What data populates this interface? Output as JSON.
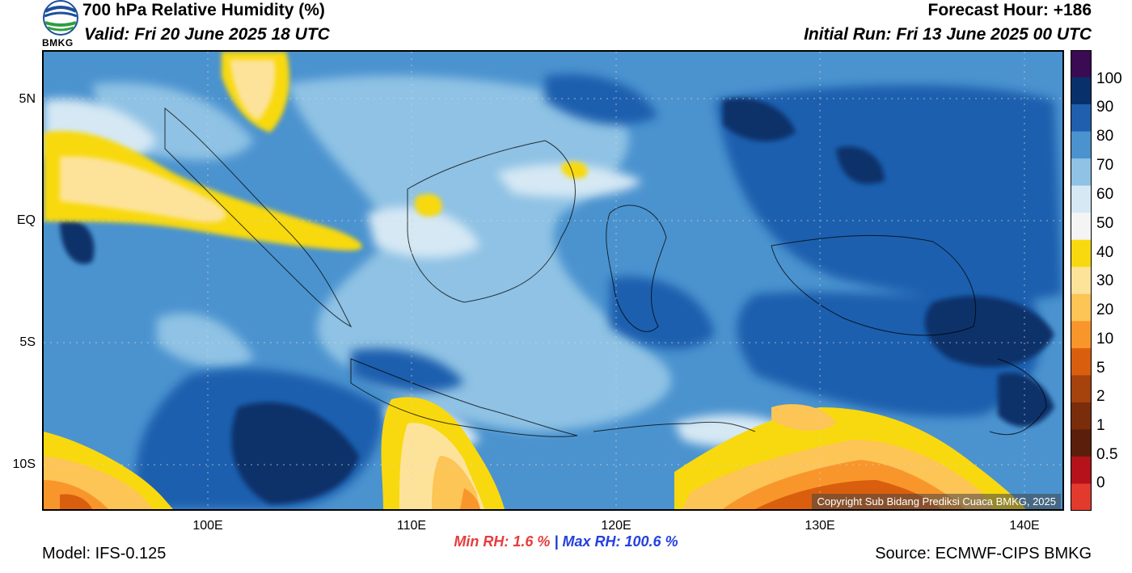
{
  "header": {
    "title": "700 hPa Relative Humidity (%)",
    "valid": "Valid: Fri 20 June 2025 18 UTC",
    "forecast_hour": "Forecast Hour: +186",
    "initial_run": "Initial Run: Fri 13 June 2025 00 UTC",
    "logo_text": "BMKG"
  },
  "map": {
    "lat_labels": [
      "5N",
      "EQ",
      "5S",
      "10S"
    ],
    "lon_labels": [
      "100E",
      "110E",
      "120E",
      "130E",
      "140E"
    ],
    "copyright": "Copyright Sub Bidang Prediksi Cuaca BMKG, 2025"
  },
  "colorbar": {
    "labels": [
      "100",
      "90",
      "80",
      "70",
      "60",
      "50",
      "40",
      "30",
      "20",
      "10",
      "5",
      "2",
      "1",
      "0.5",
      "0"
    ],
    "colors": [
      "#3a0a52",
      "#08306b",
      "#1f5fae",
      "#4b93cf",
      "#8fc2e4",
      "#d5e8f4",
      "#f4f4f4",
      "#f8d90f",
      "#fde39a",
      "#fdc456",
      "#f9962b",
      "#d95f0e",
      "#a6420b",
      "#7a2d0b",
      "#5a1f0a",
      "#b5121b",
      "#e23a2d"
    ]
  },
  "stats": {
    "min_rh": "Min RH:   1.6 %",
    "separator": "|",
    "max_rh": "Max RH: 100.6 %"
  },
  "footer": {
    "model": "Model: IFS-0.125",
    "source": "Source: ECMWF-CIPS BMKG"
  }
}
